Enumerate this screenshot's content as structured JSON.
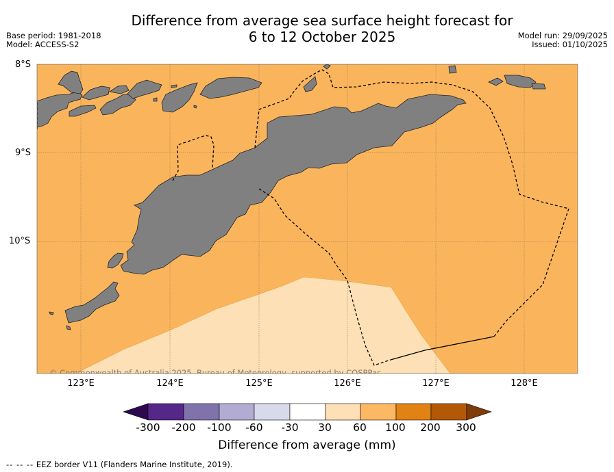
{
  "title": {
    "line1": "Difference from average sea surface height forecast for",
    "line2": "6 to 12 October 2025"
  },
  "meta": {
    "base_period": "Base period: 1981-2018",
    "model": "Model: ACCESS-S2",
    "model_run": "Model run: 29/09/2025",
    "issued": "Issued: 01/10/2025"
  },
  "map": {
    "latitude_labels": [
      "8°S",
      "9°S",
      "10°S"
    ],
    "longitude_labels": [
      "123°E",
      "124°E",
      "125°E",
      "126°E",
      "127°E",
      "128°E"
    ],
    "copyright": "© Commonwealth of Australia 2025, Bureau of Meteorology, supported by COSPPac",
    "field_class_dominant": "60 to 100 mm",
    "field_class_south": "30 to 60 mm"
  },
  "colorbar": {
    "label": "Difference from average (mm)",
    "ticks": [
      "-300",
      "-200",
      "-100",
      "-60",
      "-30",
      "30",
      "60",
      "100",
      "200",
      "300"
    ],
    "colors": {
      "below_min": "#2d0a4e",
      "c1": "#542788",
      "c2": "#8073ac",
      "c3": "#b2abd2",
      "c4": "#d8daeb",
      "c5": "#ffffff",
      "c6": "#fee0b6",
      "c7": "#fdb863",
      "c8": "#e08214",
      "c9": "#b35806",
      "above_max": "#7f3b08"
    }
  },
  "colors": {
    "ocean_main": "#fab55c",
    "ocean_light": "#fde0b6",
    "land": "#808080",
    "gridline": "#8b6b4a"
  },
  "legend": {
    "dash": "-- -- --",
    "text": "EEZ border V11 (Flanders Marine Institute, 2019)."
  }
}
